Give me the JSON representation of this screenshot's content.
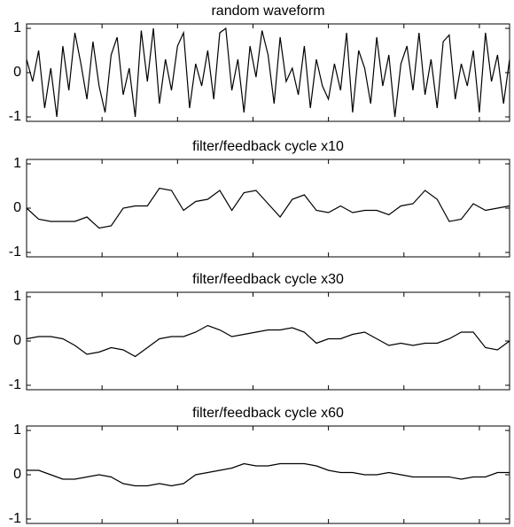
{
  "chart_data": [
    {
      "type": "line",
      "title": "random waveform",
      "color": "#000000",
      "x": [
        0,
        8,
        16,
        24,
        32,
        40,
        48,
        56,
        64,
        72,
        80,
        88,
        96,
        104,
        112,
        120,
        128,
        136,
        144,
        152,
        160,
        168,
        176,
        184,
        192,
        200,
        208,
        216,
        224,
        232,
        240,
        248,
        256,
        264,
        272,
        280,
        288,
        296,
        304,
        312,
        320,
        328,
        336,
        344,
        352,
        360,
        368,
        376,
        384,
        392,
        400,
        408,
        416,
        424,
        432,
        440,
        448,
        456,
        464,
        472,
        480,
        488,
        496,
        504,
        512,
        520,
        528,
        536,
        544,
        552,
        560,
        568,
        576,
        584,
        592,
        600,
        608,
        616,
        624,
        632,
        640
      ],
      "values": [
        0.3,
        -0.2,
        0.5,
        -0.8,
        0.1,
        -1,
        0.6,
        -0.4,
        0.9,
        0.2,
        -0.6,
        0.7,
        -0.3,
        -0.9,
        0.4,
        0.8,
        -0.5,
        0.1,
        -1,
        0.95,
        -0.2,
        1,
        -0.7,
        0.3,
        -0.4,
        0.6,
        0.9,
        -0.8,
        0.2,
        -0.3,
        0.5,
        -0.6,
        0.9,
        1,
        -0.4,
        0.3,
        -0.9,
        0.6,
        -0.1,
        0.95,
        0.4,
        -0.7,
        0.8,
        -0.2,
        0.1,
        -0.5,
        0.6,
        -0.8,
        0.3,
        -0.3,
        -0.6,
        0.2,
        -0.4,
        0.9,
        -0.9,
        0.5,
        0.1,
        -0.7,
        0.8,
        -0.3,
        0.4,
        -1,
        0.2,
        0.6,
        -0.4,
        0.9,
        -0.5,
        0.3,
        -0.8,
        0.7,
        0.85,
        -0.6,
        0.2,
        -0.3,
        0.5,
        -0.9,
        0.9,
        -0.2,
        0.4,
        -0.7,
        0.3
      ],
      "xlim": [
        0,
        640
      ],
      "xticks": [
        100,
        200,
        300,
        400,
        500,
        600
      ],
      "ylim": [
        -1.1,
        1.1
      ],
      "yticks": [
        -1,
        0,
        1
      ]
    },
    {
      "type": "line",
      "title": "filter/feedback cycle x10",
      "color": "#000000",
      "x": [
        0,
        16,
        32,
        48,
        64,
        80,
        96,
        112,
        128,
        144,
        160,
        176,
        192,
        208,
        224,
        240,
        256,
        272,
        288,
        304,
        320,
        336,
        352,
        368,
        384,
        400,
        416,
        432,
        448,
        464,
        480,
        496,
        512,
        528,
        544,
        560,
        576,
        592,
        608,
        624,
        640
      ],
      "values": [
        0,
        -0.25,
        -0.3,
        -0.3,
        -0.3,
        -0.2,
        -0.45,
        -0.4,
        0,
        0.05,
        0.05,
        0.45,
        0.4,
        -0.05,
        0.15,
        0.2,
        0.4,
        -0.05,
        0.35,
        0.4,
        0.1,
        -0.2,
        0.2,
        0.3,
        -0.05,
        -0.1,
        0.05,
        -0.1,
        -0.05,
        -0.05,
        -0.15,
        0.05,
        0.1,
        0.4,
        0.2,
        -0.3,
        -0.25,
        0.1,
        -0.05,
        0,
        0.05
      ],
      "xlim": [
        0,
        640
      ],
      "xticks": [
        100,
        200,
        300,
        400,
        500,
        600
      ],
      "ylim": [
        -1.1,
        1.1
      ],
      "yticks": [
        -1,
        0,
        1
      ]
    },
    {
      "type": "line",
      "title": "filter/feedback cycle x30",
      "color": "#000000",
      "x": [
        0,
        16,
        32,
        48,
        64,
        80,
        96,
        112,
        128,
        144,
        160,
        176,
        192,
        208,
        224,
        240,
        256,
        272,
        288,
        304,
        320,
        336,
        352,
        368,
        384,
        400,
        416,
        432,
        448,
        464,
        480,
        496,
        512,
        528,
        544,
        560,
        576,
        592,
        608,
        624,
        640
      ],
      "values": [
        0.05,
        0.1,
        0.1,
        0.05,
        -0.1,
        -0.3,
        -0.25,
        -0.15,
        -0.2,
        -0.35,
        -0.15,
        0.05,
        0.1,
        0.1,
        0.2,
        0.35,
        0.25,
        0.1,
        0.15,
        0.2,
        0.25,
        0.25,
        0.3,
        0.2,
        -0.05,
        0.05,
        0.05,
        0.15,
        0.2,
        0.05,
        -0.1,
        -0.05,
        -0.1,
        -0.05,
        -0.05,
        0.05,
        0.2,
        0.2,
        -0.15,
        -0.2,
        0
      ],
      "xlim": [
        0,
        640
      ],
      "xticks": [
        100,
        200,
        300,
        400,
        500,
        600
      ],
      "ylim": [
        -1.1,
        1.1
      ],
      "yticks": [
        -1,
        0,
        1
      ]
    },
    {
      "type": "line",
      "title": "filter/feedback cycle x60",
      "color": "#000000",
      "x": [
        0,
        16,
        32,
        48,
        64,
        80,
        96,
        112,
        128,
        144,
        160,
        176,
        192,
        208,
        224,
        240,
        256,
        272,
        288,
        304,
        320,
        336,
        352,
        368,
        384,
        400,
        416,
        432,
        448,
        464,
        480,
        496,
        512,
        528,
        544,
        560,
        576,
        592,
        608,
        624,
        640
      ],
      "values": [
        0.1,
        0.1,
        0,
        -0.1,
        -0.1,
        -0.05,
        0,
        -0.05,
        -0.2,
        -0.25,
        -0.25,
        -0.2,
        -0.25,
        -0.2,
        0,
        0.05,
        0.1,
        0.15,
        0.25,
        0.2,
        0.2,
        0.25,
        0.25,
        0.25,
        0.2,
        0.1,
        0.05,
        0.05,
        0,
        0,
        0.05,
        0,
        -0.05,
        -0.05,
        -0.05,
        -0.05,
        -0.1,
        -0.05,
        -0.05,
        0.05,
        0.05
      ],
      "xlim": [
        0,
        640
      ],
      "xticks": [
        100,
        200,
        300,
        400,
        500,
        600
      ],
      "ylim": [
        -1.1,
        1.1
      ],
      "yticks": [
        -1,
        0,
        1
      ]
    }
  ]
}
